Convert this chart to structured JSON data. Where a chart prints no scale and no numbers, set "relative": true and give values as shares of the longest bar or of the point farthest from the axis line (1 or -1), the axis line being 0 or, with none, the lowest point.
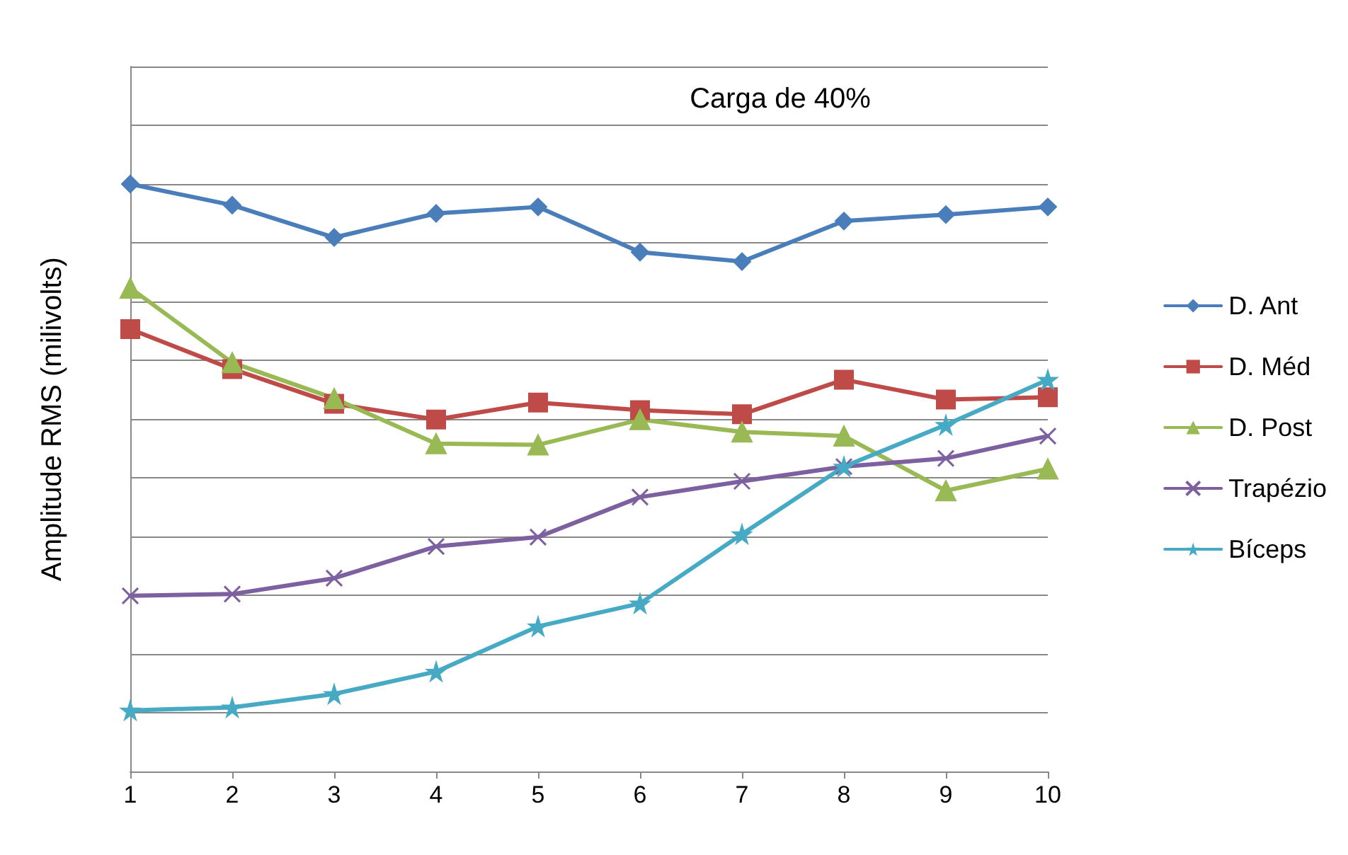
{
  "chart_data": {
    "type": "line",
    "title": "Carga de 40%",
    "ylabel": "Amplitude RMS (milivolts)",
    "relative": true,
    "grid": "y",
    "legend": "right",
    "categories": [
      "1",
      "2",
      "3",
      "4",
      "5",
      "6",
      "7",
      "8",
      "9",
      "10"
    ],
    "series": [
      {
        "name": "D. Ant",
        "color": "#4a7ebb",
        "marker": "diamond",
        "values": [
          1,
          0.964,
          0.909,
          0.95,
          0.961,
          0.884,
          0.868,
          0.937,
          0.948,
          0.961
        ]
      },
      {
        "name": "D. Méd",
        "color": "#be4b48",
        "marker": "square",
        "values": [
          0.753,
          0.685,
          0.626,
          0.599,
          0.628,
          0.615,
          0.608,
          0.667,
          0.633,
          0.637
        ]
      },
      {
        "name": "D. Post",
        "color": "#98b954",
        "marker": "triangle",
        "values": [
          0.823,
          0.696,
          0.635,
          0.558,
          0.556,
          0.599,
          0.578,
          0.571,
          0.478,
          0.515
        ]
      },
      {
        "name": "Trapézio",
        "color": "#7d60a0",
        "marker": "cross",
        "values": [
          0.299,
          0.302,
          0.329,
          0.383,
          0.399,
          0.467,
          0.494,
          0.519,
          0.533,
          0.571
        ]
      },
      {
        "name": "Bíceps",
        "color": "#46aac5",
        "marker": "star",
        "values": [
          0.104,
          0.109,
          0.132,
          0.17,
          0.247,
          0.286,
          0.404,
          0.519,
          0.59,
          0.667
        ]
      }
    ]
  }
}
